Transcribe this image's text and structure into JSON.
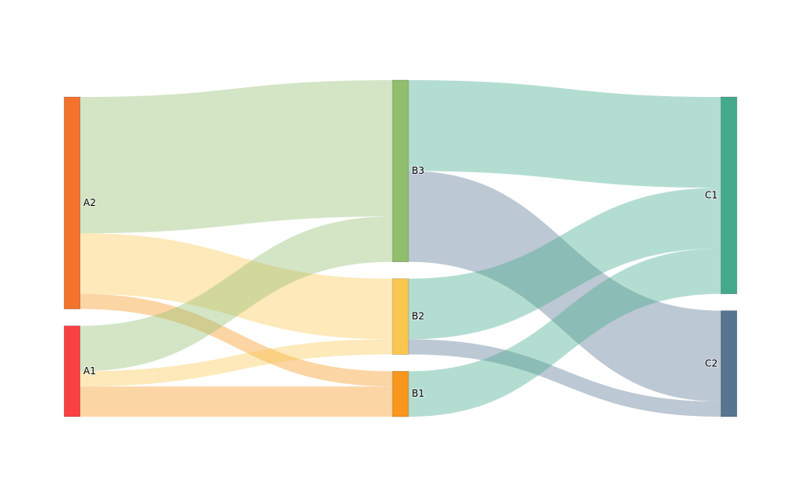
{
  "chart_data": {
    "type": "sankey",
    "nodes": [
      {
        "label": "A2",
        "color": "#f3722c"
      },
      {
        "label": "A1",
        "color": "#f94144"
      },
      {
        "label": "B3",
        "color": "#90be6d"
      },
      {
        "label": "B2",
        "color": "#f9c74f"
      },
      {
        "label": "B1",
        "color": "#f8961e"
      },
      {
        "label": "C1",
        "color": "#43aa8b"
      },
      {
        "label": "C2",
        "color": "#577590"
      }
    ],
    "links": [
      {
        "source": 0,
        "target": 2,
        "value": 90
      },
      {
        "source": 0,
        "target": 3,
        "value": 40
      },
      {
        "source": 0,
        "target": 4,
        "value": 10
      },
      {
        "source": 1,
        "target": 2,
        "value": 30
      },
      {
        "source": 1,
        "target": 3,
        "value": 10
      },
      {
        "source": 1,
        "target": 4,
        "value": 20
      },
      {
        "source": 2,
        "target": 5,
        "value": 60
      },
      {
        "source": 2,
        "target": 6,
        "value": 60
      },
      {
        "source": 3,
        "target": 5,
        "value": 40
      },
      {
        "source": 3,
        "target": 6,
        "value": 10
      },
      {
        "source": 4,
        "target": 5,
        "value": 30
      }
    ]
  }
}
